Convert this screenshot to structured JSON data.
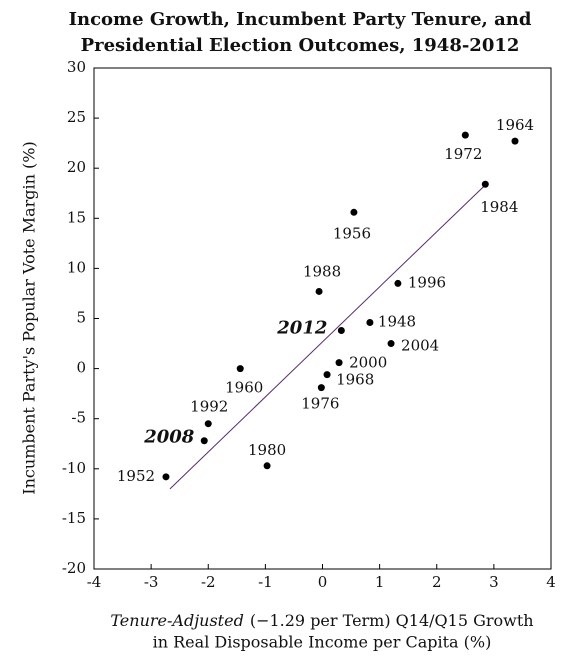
{
  "chart_data": {
    "type": "scatter",
    "title": [
      "Income Growth, Incumbent Party Tenure, and",
      "Presidential Election Outcomes, 1948-2012"
    ],
    "y_label": "Incumbent Party's Popular Vote Margin (%)",
    "x_label": [
      "Tenure-Adjusted",
      "(−1.29 per Term) Q14/Q15  Growth",
      "in Real Disposable Income per Capita (%)"
    ],
    "xlim": [
      -4,
      4
    ],
    "xticks": [
      -4,
      -3,
      -2,
      -1,
      0,
      1,
      2,
      3,
      4
    ],
    "ylim": [
      -20,
      30
    ],
    "yticks": [
      -20,
      -15,
      -10,
      -5,
      0,
      5,
      10,
      15,
      20,
      25,
      30
    ],
    "color": "#000000",
    "line_color": "#5a2a6e",
    "labels": [
      "1964",
      "1972",
      "1984",
      "1956",
      "1988",
      "1996",
      "2012",
      "1948",
      "2004",
      "2000",
      "1968",
      "1976",
      "1960",
      "1992",
      "2008",
      "1980",
      "1952"
    ],
    "emphasized": [
      false,
      false,
      false,
      false,
      false,
      false,
      true,
      false,
      false,
      false,
      false,
      false,
      false,
      false,
      true,
      false,
      false
    ],
    "x": [
      3.37,
      2.5,
      2.85,
      0.55,
      -0.06,
      1.32,
      0.33,
      0.83,
      1.2,
      0.29,
      0.08,
      -0.02,
      -1.44,
      -2.0,
      -2.07,
      -0.97,
      -2.74
    ],
    "y": [
      22.7,
      23.3,
      18.4,
      15.6,
      7.7,
      8.5,
      3.8,
      4.6,
      2.5,
      0.6,
      -0.6,
      -1.9,
      0.0,
      -5.5,
      -7.2,
      -9.7,
      -10.8
    ],
    "fit_line": {
      "x": [
        -2.67,
        2.9
      ],
      "y": [
        -12.0,
        18.6
      ]
    }
  }
}
